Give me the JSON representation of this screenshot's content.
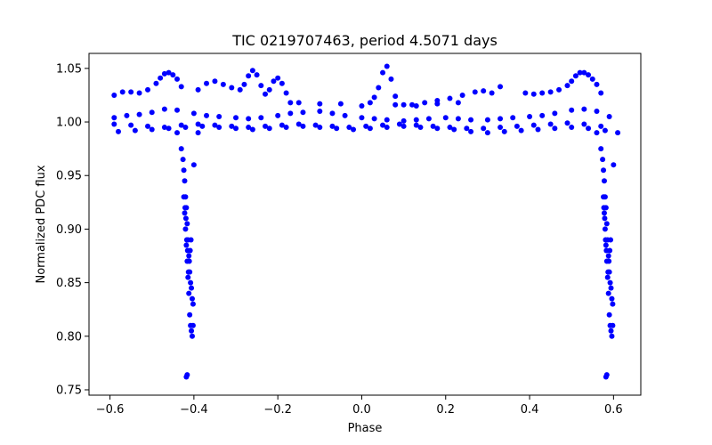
{
  "chart_data": {
    "type": "scatter",
    "title": "TIC 0219707463, period 4.5071 days",
    "xlabel": "Phase",
    "ylabel": "Normalized PDC flux",
    "xlim": [
      -0.65,
      0.665
    ],
    "ylim": [
      0.745,
      1.064
    ],
    "xticks": [
      {
        "value": -0.6,
        "label": "−0.6"
      },
      {
        "value": -0.4,
        "label": "−0.4"
      },
      {
        "value": -0.2,
        "label": "−0.2"
      },
      {
        "value": 0.0,
        "label": "0.0"
      },
      {
        "value": 0.2,
        "label": "0.2"
      },
      {
        "value": 0.4,
        "label": "0.4"
      },
      {
        "value": 0.6,
        "label": "0.6"
      }
    ],
    "yticks": [
      {
        "value": 0.75,
        "label": "0.75"
      },
      {
        "value": 0.8,
        "label": "0.80"
      },
      {
        "value": 0.85,
        "label": "0.85"
      },
      {
        "value": 0.9,
        "label": "0.90"
      },
      {
        "value": 0.95,
        "label": "0.95"
      },
      {
        "value": 1.0,
        "label": "1.00"
      },
      {
        "value": 1.05,
        "label": "1.05"
      }
    ],
    "grid": false,
    "marker_color": "#0000ff",
    "series": [
      {
        "name": "photometry",
        "x": [
          -0.59,
          -0.56,
          -0.53,
          -0.5,
          -0.47,
          -0.44,
          -0.4,
          -0.37,
          -0.34,
          -0.3,
          -0.27,
          -0.24,
          -0.2,
          -0.17,
          -0.14,
          -0.1,
          -0.07,
          -0.04,
          0.0,
          0.03,
          0.06,
          0.1,
          0.13,
          0.16,
          0.2,
          0.23,
          0.26,
          0.3,
          0.33,
          0.36,
          0.4,
          0.43,
          0.46,
          0.5,
          0.53,
          0.56,
          0.59,
          -0.59,
          -0.55,
          -0.51,
          -0.47,
          -0.43,
          -0.39,
          -0.35,
          -0.31,
          -0.27,
          -0.23,
          -0.19,
          -0.15,
          -0.11,
          -0.07,
          -0.03,
          0.01,
          0.05,
          0.09,
          0.13,
          0.17,
          0.21,
          0.25,
          0.29,
          0.33,
          0.37,
          0.41,
          0.45,
          0.49,
          0.53,
          0.57,
          -0.58,
          -0.54,
          -0.5,
          -0.46,
          -0.42,
          -0.38,
          -0.34,
          -0.3,
          -0.26,
          -0.22,
          -0.18,
          -0.14,
          -0.1,
          -0.06,
          -0.02,
          0.02,
          0.06,
          0.1,
          0.14,
          0.18,
          0.22,
          0.26,
          0.3,
          0.34,
          0.38,
          0.42,
          0.46,
          0.5,
          0.54,
          0.58,
          -0.59,
          -0.57,
          -0.55,
          -0.53,
          -0.51,
          -0.49,
          -0.48,
          -0.47,
          -0.46,
          -0.45,
          -0.44,
          -0.43,
          -0.39,
          -0.37,
          -0.35,
          -0.33,
          -0.31,
          -0.29,
          -0.28,
          -0.27,
          -0.26,
          -0.25,
          -0.24,
          -0.23,
          -0.22,
          -0.21,
          -0.2,
          -0.19,
          -0.18,
          -0.17,
          0.0,
          0.02,
          0.03,
          0.04,
          0.05,
          0.06,
          0.07,
          0.08,
          0.1,
          0.12,
          0.15,
          0.18,
          0.21,
          0.24,
          0.27,
          0.29,
          0.31,
          0.33,
          0.39,
          0.41,
          0.43,
          0.45,
          0.47,
          0.49,
          0.5,
          0.51,
          0.52,
          0.53,
          0.54,
          0.55,
          0.56,
          0.57,
          -0.15,
          -0.1,
          -0.05,
          0.08,
          0.13,
          0.18,
          0.23,
          -0.44,
          -0.43,
          -0.426,
          -0.424,
          -0.422,
          -0.42,
          -0.418,
          -0.416,
          -0.414,
          -0.412,
          -0.41,
          -0.408,
          -0.406,
          -0.404,
          -0.402,
          -0.4,
          -0.39,
          -0.424,
          -0.422,
          -0.42,
          -0.418,
          -0.416,
          -0.414,
          -0.412,
          -0.41,
          -0.408,
          -0.406,
          -0.404,
          -0.402,
          -0.415,
          -0.417,
          -0.419,
          -0.421,
          -0.413,
          -0.411,
          -0.409,
          -0.407,
          -0.418,
          -0.416,
          0.56,
          0.57,
          0.574,
          0.576,
          0.578,
          0.58,
          0.582,
          0.584,
          0.586,
          0.588,
          0.59,
          0.592,
          0.594,
          0.596,
          0.598,
          0.6,
          0.61,
          0.576,
          0.578,
          0.58,
          0.582,
          0.584,
          0.586,
          0.588,
          0.59,
          0.592,
          0.594,
          0.596,
          0.598,
          0.583,
          0.581,
          0.579,
          0.577,
          0.587,
          0.589,
          0.591,
          0.593,
          0.582,
          0.584
        ],
        "y": [
          1.004,
          1.006,
          1.007,
          1.009,
          1.012,
          1.011,
          1.008,
          1.006,
          1.005,
          1.004,
          1.003,
          1.004,
          1.006,
          1.008,
          1.009,
          1.01,
          1.008,
          1.006,
          1.004,
          1.003,
          1.002,
          1.001,
          1.002,
          1.003,
          1.004,
          1.003,
          1.002,
          1.002,
          1.003,
          1.004,
          1.005,
          1.006,
          1.008,
          1.011,
          1.012,
          1.01,
          1.005,
          0.998,
          0.997,
          0.996,
          0.995,
          0.997,
          0.998,
          0.997,
          0.996,
          0.995,
          0.996,
          0.997,
          0.998,
          0.997,
          0.996,
          0.995,
          0.996,
          0.997,
          0.998,
          0.997,
          0.996,
          0.995,
          0.994,
          0.994,
          0.995,
          0.996,
          0.997,
          0.998,
          0.999,
          0.998,
          0.996,
          0.991,
          0.992,
          0.993,
          0.994,
          0.995,
          0.996,
          0.995,
          0.994,
          0.993,
          0.994,
          0.995,
          0.996,
          0.995,
          0.994,
          0.993,
          0.994,
          0.995,
          0.996,
          0.995,
          0.994,
          0.993,
          0.991,
          0.99,
          0.991,
          0.992,
          0.993,
          0.994,
          0.995,
          0.994,
          0.992,
          1.025,
          1.028,
          1.028,
          1.027,
          1.03,
          1.036,
          1.041,
          1.045,
          1.046,
          1.044,
          1.04,
          1.033,
          1.03,
          1.036,
          1.038,
          1.035,
          1.032,
          1.03,
          1.035,
          1.043,
          1.048,
          1.044,
          1.034,
          1.026,
          1.03,
          1.038,
          1.041,
          1.036,
          1.027,
          1.018,
          1.015,
          1.018,
          1.023,
          1.032,
          1.046,
          1.052,
          1.04,
          1.024,
          1.016,
          1.016,
          1.018,
          1.02,
          1.022,
          1.025,
          1.028,
          1.029,
          1.027,
          1.033,
          1.027,
          1.026,
          1.027,
          1.028,
          1.03,
          1.034,
          1.038,
          1.043,
          1.046,
          1.046,
          1.044,
          1.04,
          1.035,
          1.027,
          1.018,
          1.017,
          1.017,
          1.016,
          1.015,
          1.017,
          1.018,
          0.99,
          0.975,
          0.965,
          0.955,
          0.945,
          0.93,
          0.92,
          0.905,
          0.89,
          0.875,
          0.86,
          0.85,
          0.845,
          0.835,
          0.83,
          0.96,
          0.99,
          0.93,
          0.915,
          0.9,
          0.885,
          0.87,
          0.855,
          0.84,
          0.82,
          0.81,
          0.805,
          0.8,
          0.81,
          0.88,
          0.89,
          0.91,
          0.92,
          0.86,
          0.87,
          0.88,
          0.89,
          0.762,
          0.764,
          0.99,
          0.975,
          0.965,
          0.955,
          0.945,
          0.93,
          0.92,
          0.905,
          0.89,
          0.875,
          0.86,
          0.85,
          0.845,
          0.835,
          0.83,
          0.96,
          0.99,
          0.93,
          0.915,
          0.9,
          0.885,
          0.87,
          0.855,
          0.84,
          0.82,
          0.81,
          0.805,
          0.8,
          0.81,
          0.88,
          0.89,
          0.91,
          0.92,
          0.86,
          0.87,
          0.88,
          0.89,
          0.762,
          0.764
        ]
      }
    ]
  }
}
